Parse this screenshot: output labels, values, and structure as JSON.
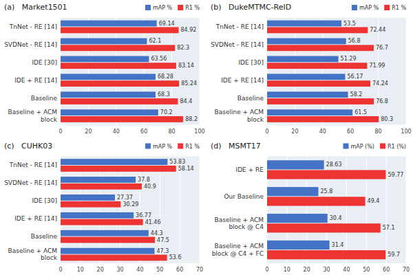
{
  "chart_data": [
    {
      "type": "bar",
      "orientation": "horizontal",
      "title": "(a)   Market1501",
      "categories": [
        "TnNet - RE [14]",
        "SVDNet - RE [14]",
        "IDE [30]",
        "IDE + RE [14]",
        "Baseline",
        "Baseline + ACM\nblock"
      ],
      "series": [
        {
          "name": "mAP %",
          "color": "#4472C4",
          "values": [
            69.14,
            62.1,
            63.56,
            68.28,
            68.3,
            70.2
          ]
        },
        {
          "name": "R1 %",
          "color": "#EE3333",
          "values": [
            84.92,
            82.3,
            83.14,
            85.24,
            84.4,
            88.2
          ]
        }
      ],
      "xlim": [
        0,
        100
      ],
      "xticks": [
        0,
        20,
        40,
        60,
        80,
        100
      ],
      "grid": true,
      "legend": "upper right",
      "data_labels": true
    },
    {
      "type": "bar",
      "orientation": "horizontal",
      "title": "(b)   DukeMTMC-ReID",
      "categories": [
        "TnNet - RE [14]",
        "SVDNet - RE [14]",
        "IDE [30]",
        "IDE + RE [14]",
        "Baseline",
        "Baseline + ACM\nblock"
      ],
      "series": [
        {
          "name": "mAP %",
          "color": "#4472C4",
          "values": [
            53.5,
            56.8,
            51.29,
            56.17,
            58.2,
            61.5
          ]
        },
        {
          "name": "R1 %",
          "color": "#EE3333",
          "values": [
            72.44,
            76.7,
            71.99,
            74.24,
            76.8,
            80.3
          ]
        }
      ],
      "xlim": [
        0,
        100
      ],
      "xticks": [
        0,
        20,
        40,
        60,
        80,
        100
      ],
      "grid": true,
      "legend": "upper right",
      "data_labels": true
    },
    {
      "type": "bar",
      "orientation": "horizontal",
      "title": "(c)   CUHK03",
      "categories": [
        "TnNet - RE [14]",
        "SVDNet - RE [14]",
        "IDE [30]",
        "IDE + RE [14]",
        "Baseline",
        "Baseline + ACM\nblock"
      ],
      "series": [
        {
          "name": "mAP %",
          "color": "#4472C4",
          "values": [
            53.83,
            37.8,
            27.37,
            36.77,
            44.3,
            47.3
          ]
        },
        {
          "name": "R1 %",
          "color": "#EE3333",
          "values": [
            58.14,
            40.9,
            30.29,
            41.46,
            47.5,
            53.6
          ]
        }
      ],
      "xlim": [
        0,
        70
      ],
      "xticks": [
        0,
        10,
        20,
        30,
        40,
        50,
        60,
        70
      ],
      "grid": true,
      "legend": "upper right",
      "data_labels": true
    },
    {
      "type": "bar",
      "orientation": "horizontal",
      "title": "(d)   MSMT17",
      "categories": [
        "IDE + RE",
        "Our Baseline",
        "Baseline + ACM\nblock @ C4",
        "Baseline + ACM\nblock @ C4 + FC"
      ],
      "series": [
        {
          "name": "mAP (%)",
          "color": "#4472C4",
          "values": [
            28.63,
            25.8,
            30.4,
            31.4
          ]
        },
        {
          "name": "R1 (%)",
          "color": "#EE3333",
          "values": [
            59.77,
            49.4,
            57.1,
            59.7
          ]
        }
      ],
      "xlim": [
        0,
        70
      ],
      "xticks": [
        0,
        10,
        20,
        30,
        40,
        50,
        60,
        70
      ],
      "grid": true,
      "legend": "upper right",
      "data_labels": true
    }
  ]
}
